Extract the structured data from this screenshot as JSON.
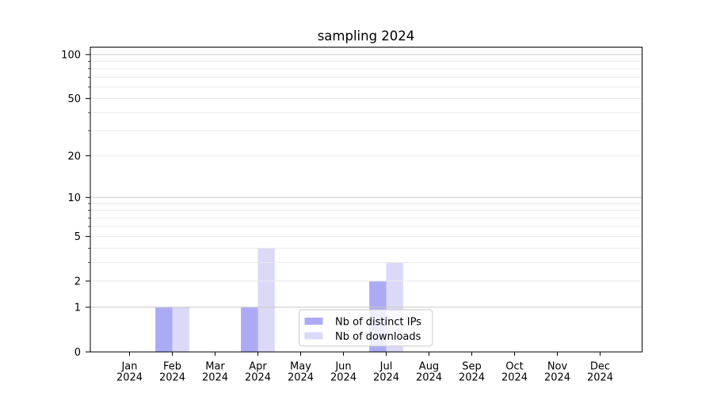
{
  "chart_data": {
    "type": "bar",
    "title": "sampling 2024",
    "categories": [
      "Jan 2024",
      "Feb 2024",
      "Mar 2024",
      "Apr 2024",
      "May 2024",
      "Jun 2024",
      "Jul 2024",
      "Aug 2024",
      "Sep 2024",
      "Oct 2024",
      "Nov 2024",
      "Dec 2024"
    ],
    "months": [
      "Jan",
      "Feb",
      "Mar",
      "Apr",
      "May",
      "Jun",
      "Jul",
      "Aug",
      "Sep",
      "Oct",
      "Nov",
      "Dec"
    ],
    "year": "2024",
    "series": [
      {
        "name": "Nb of distinct IPs",
        "color": "#ababf5",
        "values": [
          0,
          1,
          0,
          1,
          0,
          0,
          2,
          0,
          0,
          0,
          0,
          0
        ]
      },
      {
        "name": "Nb of downloads",
        "color": "#dadaf8",
        "values": [
          0,
          1,
          0,
          4,
          0,
          0,
          3,
          0,
          0,
          0,
          0,
          0
        ]
      }
    ],
    "y_axis": {
      "scale": "log10(1+y)",
      "tick_labels": [
        0,
        1,
        2,
        5,
        10,
        20,
        50,
        100
      ],
      "decade_gridlines": [
        1,
        10,
        100
      ],
      "minor_gridlines": [
        2,
        3,
        4,
        5,
        6,
        7,
        8,
        9,
        20,
        30,
        40,
        50,
        60,
        70,
        80,
        90
      ],
      "top_value": 100
    },
    "legend": {
      "position": "inside-bottom-center"
    },
    "grid": "on"
  },
  "colors": {
    "bar_distinct_ips": "#ababf5",
    "bar_downloads": "#dadaf8",
    "grid_decade": "#c8c8c8",
    "grid_minor": "#e9e9e9",
    "axis": "#000000",
    "legend_border": "#c9c9c9",
    "background": "#ffffff"
  }
}
